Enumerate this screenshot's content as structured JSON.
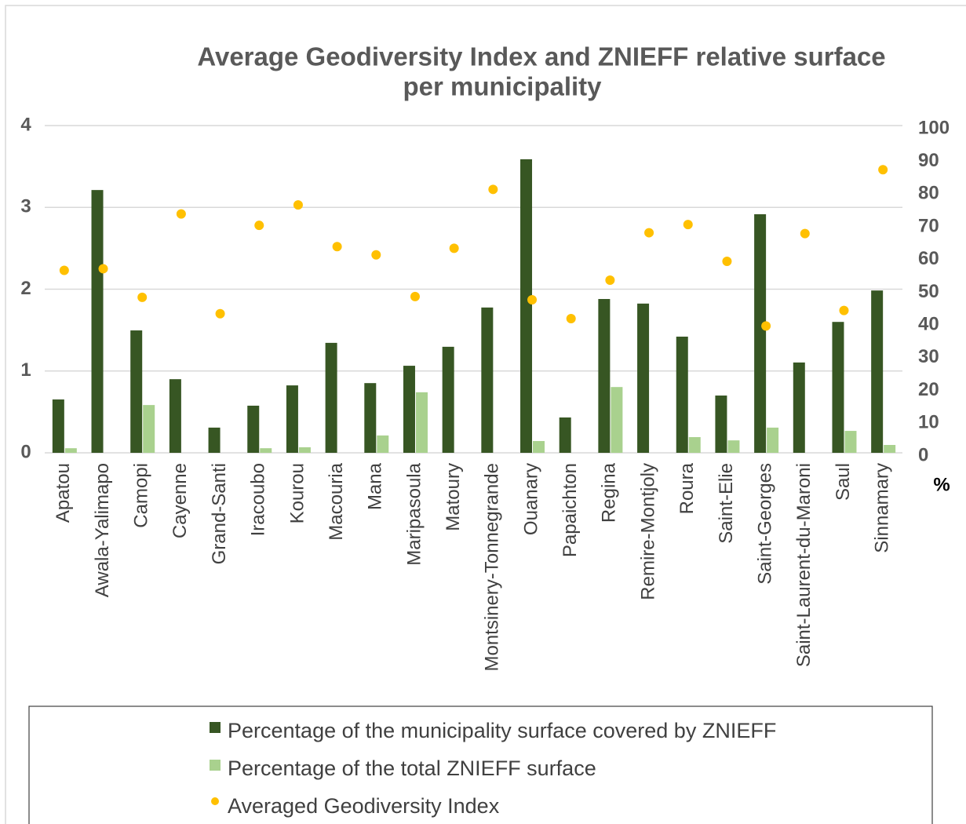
{
  "chart_data": {
    "type": "bar",
    "title": [
      "Average Geodiversity Index and ZNIEFF relative surface",
      "per municipality"
    ],
    "categories": [
      "Apatou",
      "Awala-Yalimapo",
      "Camopi",
      "Cayenne",
      "Grand-Santi",
      "Iracoubo",
      "Kourou",
      "Macouria",
      "Mana",
      "Maripasoula",
      "Matoury",
      "Montsinery-Tonnegrande",
      "Ouanary",
      "Papaichton",
      "Regina",
      "Remire-Montjoly",
      "Roura",
      "Saint-Elie",
      "Saint-Georges",
      "Saint-Laurent-du-Maroni",
      "Saul",
      "Sinnamary"
    ],
    "series": [
      {
        "name": "Percentage of the municipality surface covered by ZNIEFF",
        "type": "bar",
        "axis": "y2",
        "color": "#375623",
        "values": [
          16.3,
          80.3,
          37.4,
          22.5,
          7.7,
          14.4,
          20.6,
          33.6,
          21.3,
          26.6,
          32.4,
          44.4,
          89.7,
          10.8,
          47.0,
          45.6,
          35.5,
          17.5,
          72.9,
          27.6,
          40.0,
          49.6
        ]
      },
      {
        "name": "Percentage of the total ZNIEFF surface",
        "type": "bar",
        "axis": "y2",
        "color": "#a9d18e",
        "values": [
          1.4,
          0,
          14.6,
          0,
          0,
          1.4,
          1.7,
          0,
          5.3,
          18.5,
          0,
          0,
          3.6,
          0,
          20.1,
          0,
          4.8,
          3.8,
          7.7,
          0,
          6.7,
          2.4
        ]
      },
      {
        "name": "Averaged Geodiversity Index",
        "type": "scatter",
        "color": "#ffc000",
        "values": [
          2.23,
          2.25,
          1.9,
          2.92,
          1.7,
          2.78,
          3.03,
          2.52,
          2.42,
          1.91,
          2.5,
          3.22,
          1.87,
          1.64,
          2.11,
          2.69,
          2.79,
          2.34,
          1.55,
          2.68,
          1.74,
          3.46
        ]
      }
    ],
    "ylim": [
      0,
      4
    ],
    "yticks": [
      0,
      1,
      2,
      3,
      4
    ],
    "y2lim": [
      0,
      100
    ],
    "y2ticks": [
      0,
      10,
      20,
      30,
      40,
      50,
      60,
      70,
      80,
      90,
      100
    ],
    "y2label": "%",
    "grid": true,
    "legend": "bottom"
  }
}
